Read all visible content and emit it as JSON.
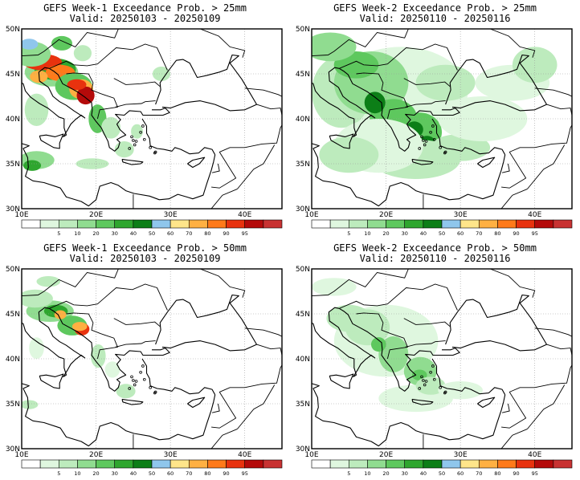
{
  "figure": {
    "lat_labels": [
      "50N",
      "45N",
      "40N",
      "35N",
      "30N"
    ],
    "lon_labels": [
      "10E",
      "20E",
      "30E",
      "40E"
    ],
    "colorbar_ticks": [
      "5",
      "10",
      "20",
      "30",
      "40",
      "50",
      "60",
      "70",
      "80",
      "90",
      "95"
    ],
    "colorbar_colors": [
      "#ffffff",
      "#dff7df",
      "#bdebbd",
      "#90dc90",
      "#5ec85e",
      "#2ea62e",
      "#0c7e17",
      "#8fc6ec",
      "#ffe58a",
      "#ffb042",
      "#ff7a1a",
      "#e8320e",
      "#b40a0a",
      "#c83232"
    ]
  },
  "panels": [
    {
      "title": "GEFS Week-1 Exceedance Prob. > 25mm",
      "valid": "Valid: 20250103 - 20250109"
    },
    {
      "title": "GEFS Week-2 Exceedance Prob. > 25mm",
      "valid": "Valid: 20250110 - 20250116"
    },
    {
      "title": "GEFS Week-1 Exceedance Prob. > 50mm",
      "valid": "Valid: 20250103 - 20250109"
    },
    {
      "title": "GEFS Week-2 Exceedance Prob. > 50mm",
      "valid": "Valid: 20250110 - 20250116"
    }
  ]
}
